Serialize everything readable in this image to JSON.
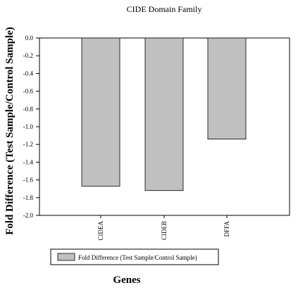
{
  "chart_data": {
    "type": "bar",
    "title": "CIDE Domain Family",
    "xlabel": "Genes",
    "ylabel": "Fold Difference (Test Sample/Control Sample)",
    "categories": [
      "CIDEA",
      "CIDEB",
      "DFFA"
    ],
    "series": [
      {
        "name": "Fold Difference (Test Sample/Control Sample)",
        "values": [
          -1.67,
          -1.72,
          -1.14
        ],
        "color": "#c0c0c0"
      }
    ],
    "ylim": [
      -2.0,
      0.0
    ],
    "yticks": [
      "0.0",
      "-0.2",
      "-0.4",
      "-0.6",
      "-0.8",
      "-1.0",
      "-1.2",
      "-1.4",
      "-1.6",
      "-1.8",
      "-2.0"
    ],
    "grid": false,
    "legend_position": "bottom-left"
  }
}
